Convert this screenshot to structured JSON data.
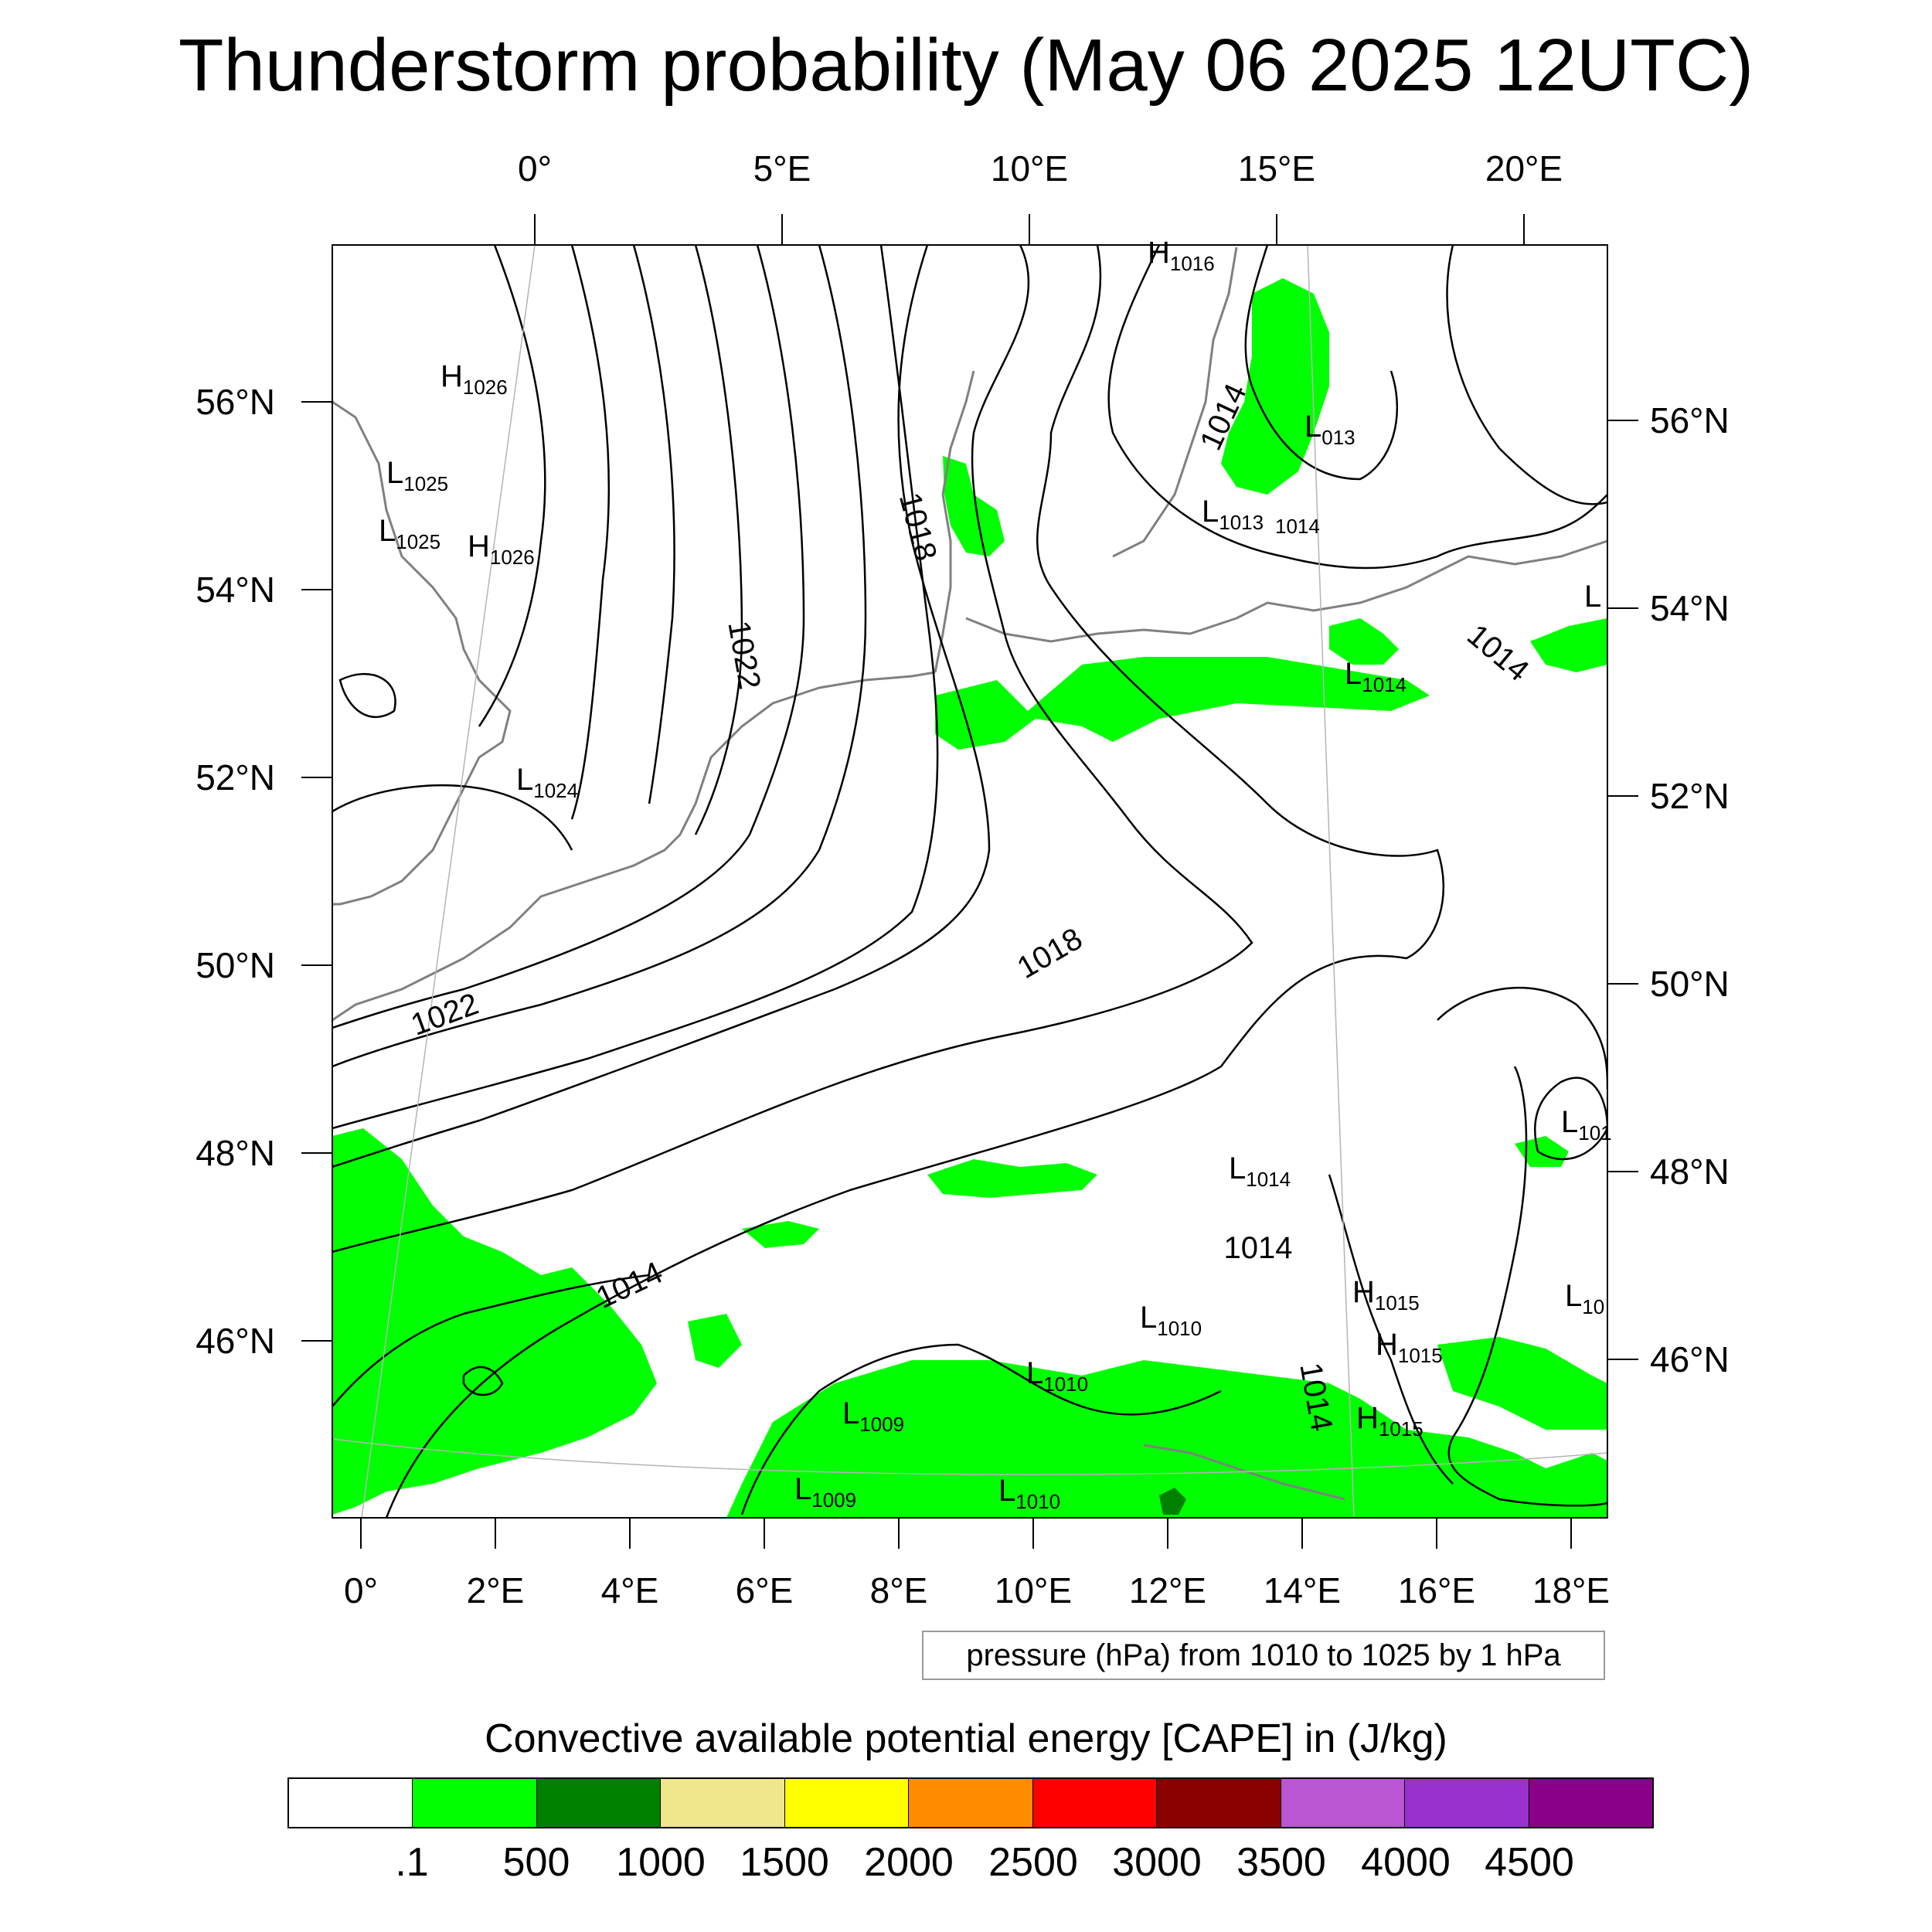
{
  "title": "Thunderstorm probability (May 06 2025 12UTC)",
  "top_axis_labels": [
    "0°",
    "5°E",
    "10°E",
    "15°E",
    "20°E"
  ],
  "bottom_axis_labels": [
    "0°",
    "2°E",
    "4°E",
    "6°E",
    "8°E",
    "10°E",
    "12°E",
    "14°E",
    "16°E",
    "18°E"
  ],
  "left_axis_labels": [
    "56°N",
    "54°N",
    "52°N",
    "50°N",
    "48°N",
    "46°N"
  ],
  "right_axis_labels": [
    "56°N",
    "54°N",
    "52°N",
    "50°N",
    "48°N",
    "46°N"
  ],
  "contour_labels": [
    "1022",
    "1018",
    "1014",
    "1022",
    "1018",
    "1014",
    "1014",
    "1014",
    "1014"
  ],
  "pressure_centers": [
    {
      "type": "H",
      "value": "1016"
    },
    {
      "type": "H",
      "value": "1026"
    },
    {
      "type": "L",
      "value": "1025"
    },
    {
      "type": "L",
      "value": "1025"
    },
    {
      "type": "H",
      "value": "1026"
    },
    {
      "type": "L",
      "value": "1024"
    },
    {
      "type": "L",
      "value": "013"
    },
    {
      "type": "L",
      "value": "1013"
    },
    {
      "type": "",
      "value": "1014"
    },
    {
      "type": "L",
      "value": "1014"
    },
    {
      "type": "L",
      "value": ""
    },
    {
      "type": "L",
      "value": "101"
    },
    {
      "type": "L",
      "value": "1014"
    },
    {
      "type": "H",
      "value": "1015"
    },
    {
      "type": "H",
      "value": "1015"
    },
    {
      "type": "L",
      "value": "10"
    },
    {
      "type": "L",
      "value": "1010"
    },
    {
      "type": "L",
      "value": "1010"
    },
    {
      "type": "L",
      "value": "1009"
    },
    {
      "type": "H",
      "value": "1015"
    },
    {
      "type": "L",
      "value": "1009"
    },
    {
      "type": "L",
      "value": "1010"
    }
  ],
  "info_box": "pressure (hPa) from 1010 to 1025 by 1 hPa",
  "colorbar": {
    "title": "Convective available potential energy [CAPE] in (J/kg)",
    "colors": [
      "#ffffff",
      "#00ff00",
      "#008000",
      "#f0e68c",
      "#ffff00",
      "#ff8c00",
      "#ff0000",
      "#8b0000",
      "#ba55d3",
      "#9932cc",
      "#8b008b"
    ],
    "labels": [
      ".1",
      "500",
      "1000",
      "1500",
      "2000",
      "2500",
      "3000",
      "3500",
      "4000",
      "4500"
    ]
  },
  "colors": {
    "cape_low": "#00ff00",
    "cape_mid": "#008000",
    "coastline": "#808080",
    "isobar": "#000000",
    "gridline": "#b4b4b4"
  }
}
